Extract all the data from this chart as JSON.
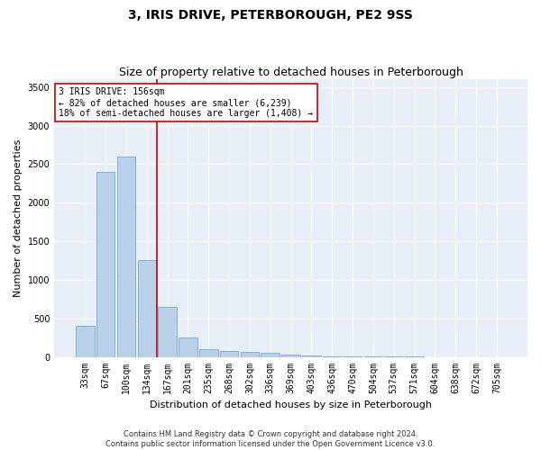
{
  "title": "3, IRIS DRIVE, PETERBOROUGH, PE2 9SS",
  "subtitle": "Size of property relative to detached houses in Peterborough",
  "xlabel": "Distribution of detached houses by size in Peterborough",
  "ylabel": "Number of detached properties",
  "categories": [
    "33sqm",
    "67sqm",
    "100sqm",
    "134sqm",
    "167sqm",
    "201sqm",
    "235sqm",
    "268sqm",
    "302sqm",
    "336sqm",
    "369sqm",
    "403sqm",
    "436sqm",
    "470sqm",
    "504sqm",
    "537sqm",
    "571sqm",
    "604sqm",
    "638sqm",
    "672sqm",
    "705sqm"
  ],
  "values": [
    400,
    2400,
    2600,
    1250,
    650,
    250,
    100,
    75,
    60,
    50,
    30,
    15,
    8,
    4,
    2,
    1,
    1,
    0,
    0,
    0,
    0
  ],
  "bar_color": "#b8d0e8",
  "bar_edge_color": "#6699cc",
  "vline_color": "#cc0000",
  "vline_x": 3.5,
  "annotation_text": "3 IRIS DRIVE: 156sqm\n← 82% of detached houses are smaller (6,239)\n18% of semi-detached houses are larger (1,408) →",
  "annotation_box_color": "white",
  "annotation_box_edge_color": "#cc0000",
  "ylim": [
    0,
    3600
  ],
  "yticks": [
    0,
    500,
    1000,
    1500,
    2000,
    2500,
    3000,
    3500
  ],
  "plot_bg_color": "#e8eef7",
  "fig_bg_color": "#ffffff",
  "footer_line1": "Contains HM Land Registry data © Crown copyright and database right 2024.",
  "footer_line2": "Contains public sector information licensed under the Open Government Licence v3.0.",
  "title_fontsize": 10,
  "subtitle_fontsize": 9,
  "xlabel_fontsize": 8,
  "ylabel_fontsize": 8,
  "tick_fontsize": 7,
  "annotation_fontsize": 7,
  "footer_fontsize": 6
}
